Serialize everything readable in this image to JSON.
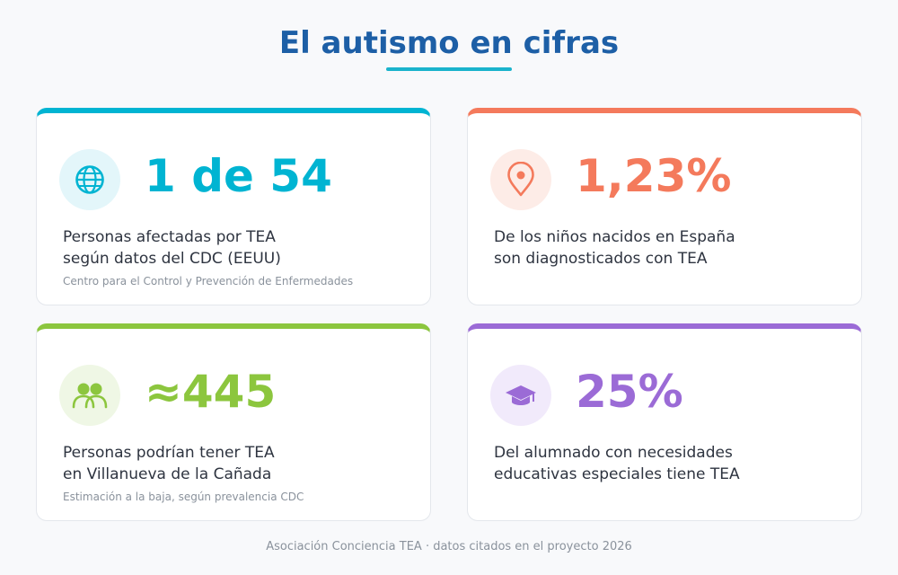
{
  "page": {
    "title": "El autismo en cifras",
    "footer": "Asociación Conciencia TEA · datos citados en el proyecto 2026"
  },
  "colors": {
    "title": "#1d5fa6",
    "cyan": "#00b4d2",
    "coral": "#f47a5c",
    "green": "#8cc63e",
    "purple": "#9b6bd6"
  },
  "cards": [
    {
      "icon": "globe-icon",
      "stat": "1 de 54",
      "line1": "Personas afectadas por TEA",
      "line2": "según datos del CDC (EEUU)",
      "note": "Centro para el Control y Prevención de Enfermedades"
    },
    {
      "icon": "location-pin-icon",
      "stat": "1,23%",
      "line1": "De los niños nacidos en España",
      "line2": "son diagnosticados con TEA",
      "note": ""
    },
    {
      "icon": "people-icon",
      "stat": "≈445",
      "line1": "Personas podrían tener TEA",
      "line2": "en Villanueva de la Cañada",
      "note": "Estimación a la baja, según prevalencia CDC"
    },
    {
      "icon": "graduation-cap-icon",
      "stat": "25%",
      "line1": "Del alumnado con necesidades",
      "line2": "educativas especiales tiene TEA",
      "note": ""
    }
  ]
}
